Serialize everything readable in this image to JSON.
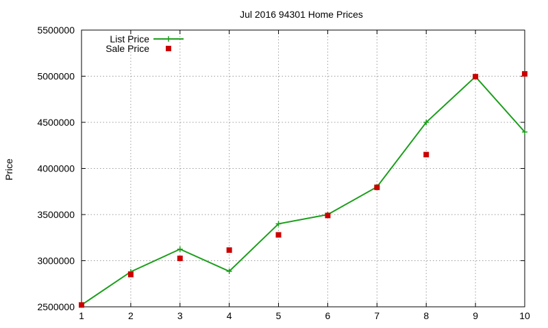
{
  "chart_data": {
    "type": "line",
    "title": "Jul 2016 94301 Home Prices",
    "xlabel": "",
    "ylabel": "Price",
    "x": [
      1,
      2,
      3,
      4,
      5,
      6,
      7,
      8,
      9,
      10
    ],
    "xlim": [
      1,
      10
    ],
    "ylim": [
      2500000,
      5500000
    ],
    "yticks": [
      2500000,
      3000000,
      3500000,
      4000000,
      4500000,
      5000000,
      5500000
    ],
    "xticks": [
      1,
      2,
      3,
      4,
      5,
      6,
      7,
      8,
      9,
      10
    ],
    "grid": true,
    "legend_position": "top-left",
    "series": [
      {
        "name": "List Price",
        "style": "line-with-plus-markers",
        "color": "#1a9e1a",
        "values": [
          2520000,
          2880000,
          3125000,
          2885000,
          3400000,
          3500000,
          3800000,
          4500000,
          4995000,
          4395000
        ]
      },
      {
        "name": "Sale Price",
        "style": "square-markers",
        "color": "#cc0000",
        "values": [
          2520000,
          2850000,
          3025000,
          3115000,
          3280000,
          3490000,
          3795000,
          4150000,
          4995000,
          5025000
        ]
      }
    ]
  }
}
